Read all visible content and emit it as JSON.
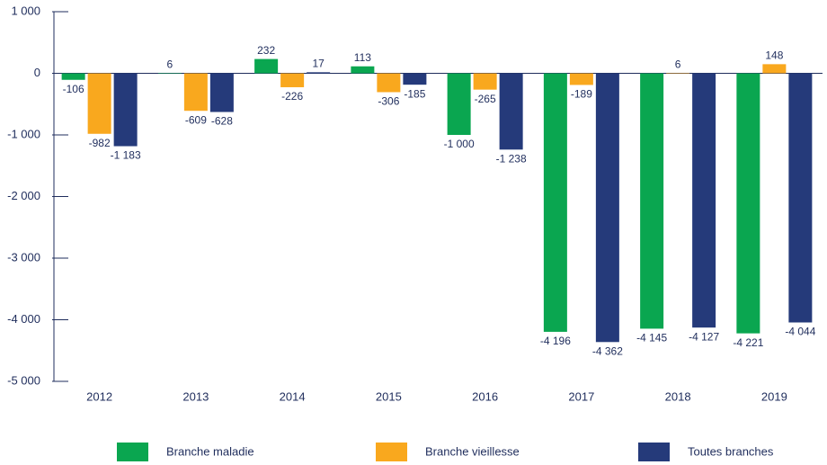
{
  "chart_data": {
    "type": "bar",
    "categories": [
      "2012",
      "2013",
      "2014",
      "2015",
      "2016",
      "2017",
      "2018",
      "2019"
    ],
    "series": [
      {
        "name": "Branche maladie",
        "color": "#0aa650",
        "values": [
          -106,
          6,
          232,
          113,
          -1000,
          -4196,
          -4145,
          -4221
        ],
        "value_labels": [
          "-106",
          "6",
          "232",
          "113",
          "-1 000",
          "-4 196",
          "-4 145",
          "-4 221"
        ]
      },
      {
        "name": "Branche vieillesse",
        "color": "#f9a81e",
        "values": [
          -982,
          -609,
          -226,
          -306,
          -265,
          -189,
          6,
          148
        ],
        "value_labels": [
          "-982",
          "-609",
          "-226",
          "-306",
          "-265",
          "-189",
          "6",
          "148"
        ]
      },
      {
        "name": "Toutes branches",
        "color": "#253a7a",
        "values": [
          -1183,
          -628,
          17,
          -185,
          -1238,
          -4362,
          -4127,
          -4044
        ],
        "value_labels": [
          "-1 183",
          "-628",
          "17",
          "-185",
          "-1 238",
          "-4 362",
          "-4 127",
          "-4 044"
        ]
      }
    ],
    "ylim": [
      -5000,
      1000
    ],
    "yticks": [
      {
        "value": 1000,
        "label": "1 000"
      },
      0,
      {
        "value": -1000,
        "label": "-1 000"
      },
      {
        "value": -2000,
        "label": "-2 000"
      },
      {
        "value": -3000,
        "label": "-3 000"
      },
      {
        "value": -4000,
        "label": "-4 000"
      },
      {
        "value": -5000,
        "label": "-5 000"
      }
    ],
    "legend": "bottom"
  }
}
